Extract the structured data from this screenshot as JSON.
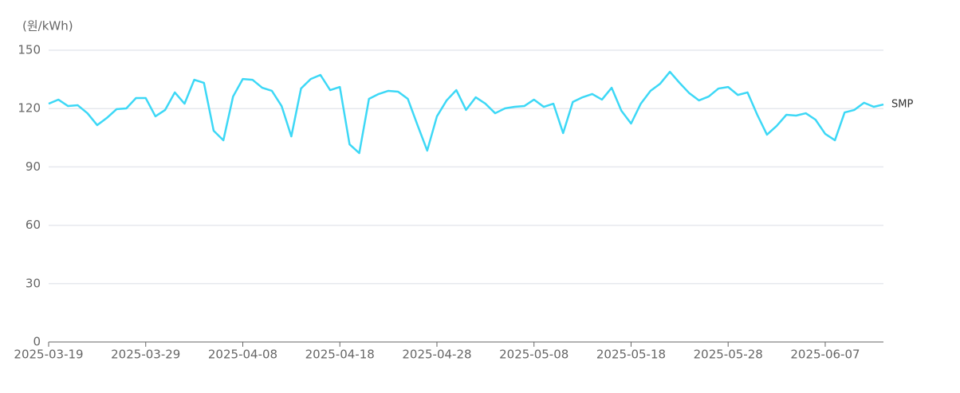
{
  "chart_data": {
    "type": "line",
    "y_label": "(원/kWh)",
    "x": [
      "2025-03-19",
      "2025-03-20",
      "2025-03-21",
      "2025-03-22",
      "2025-03-23",
      "2025-03-24",
      "2025-03-25",
      "2025-03-26",
      "2025-03-27",
      "2025-03-28",
      "2025-03-29",
      "2025-03-30",
      "2025-03-31",
      "2025-04-01",
      "2025-04-02",
      "2025-04-03",
      "2025-04-04",
      "2025-04-05",
      "2025-04-06",
      "2025-04-07",
      "2025-04-08",
      "2025-04-09",
      "2025-04-10",
      "2025-04-11",
      "2025-04-12",
      "2025-04-13",
      "2025-04-14",
      "2025-04-15",
      "2025-04-16",
      "2025-04-17",
      "2025-04-18",
      "2025-04-19",
      "2025-04-20",
      "2025-04-21",
      "2025-04-22",
      "2025-04-23",
      "2025-04-24",
      "2025-04-25",
      "2025-04-26",
      "2025-04-27",
      "2025-04-28",
      "2025-04-29",
      "2025-04-30",
      "2025-05-01",
      "2025-05-02",
      "2025-05-03",
      "2025-05-04",
      "2025-05-05",
      "2025-05-06",
      "2025-05-07",
      "2025-05-08",
      "2025-05-09",
      "2025-05-10",
      "2025-05-11",
      "2025-05-12",
      "2025-05-13",
      "2025-05-14",
      "2025-05-15",
      "2025-05-16",
      "2025-05-17",
      "2025-05-18",
      "2025-05-19",
      "2025-05-20",
      "2025-05-21",
      "2025-05-22",
      "2025-05-23",
      "2025-05-24",
      "2025-05-25",
      "2025-05-26",
      "2025-05-27",
      "2025-05-28",
      "2025-05-29",
      "2025-05-30",
      "2025-05-31",
      "2025-06-01",
      "2025-06-02",
      "2025-06-03",
      "2025-06-04",
      "2025-06-05",
      "2025-06-06",
      "2025-06-07",
      "2025-06-08",
      "2025-06-09",
      "2025-06-10",
      "2025-06-11",
      "2025-06-12",
      "2025-06-13"
    ],
    "series": [
      {
        "name": "SMP",
        "color": "#3dd8f6",
        "values": [
          122.5,
          124.6,
          121.3,
          121.7,
          117.6,
          111.5,
          115.2,
          119.7,
          120.1,
          125.4,
          125.4,
          116,
          119.3,
          128.3,
          122.5,
          134.8,
          133.2,
          108.6,
          103.7,
          126.2,
          135.2,
          134.8,
          130.7,
          129.1,
          121.3,
          105.7,
          130.3,
          135.2,
          137.3,
          129.5,
          131.1,
          101.6,
          97.1,
          125,
          127.5,
          129.1,
          128.7,
          125,
          111.5,
          98.4,
          116,
          124.2,
          129.5,
          119.3,
          125.8,
          122.5,
          117.6,
          120.1,
          120.9,
          121.3,
          124.6,
          120.9,
          122.5,
          107.4,
          123.4,
          125.8,
          127.5,
          124.6,
          130.7,
          118.9,
          112.3,
          122.5,
          129.1,
          132.8,
          138.9,
          133.2,
          127.9,
          124.2,
          126.2,
          130.3,
          131.1,
          127,
          128.3,
          116.8,
          106.6,
          111.1,
          116.8,
          116.4,
          117.6,
          114.3,
          107,
          103.7,
          118,
          119.3,
          123,
          120.9,
          122.1
        ]
      }
    ],
    "xticks": [
      "2025-03-19",
      "2025-03-29",
      "2025-04-08",
      "2025-04-18",
      "2025-04-28",
      "2025-05-08",
      "2025-05-18",
      "2025-05-28",
      "2025-06-07"
    ],
    "ylim": [
      0,
      150
    ],
    "yticks": [
      0,
      30,
      60,
      90,
      120,
      150
    ],
    "grid": true
  }
}
